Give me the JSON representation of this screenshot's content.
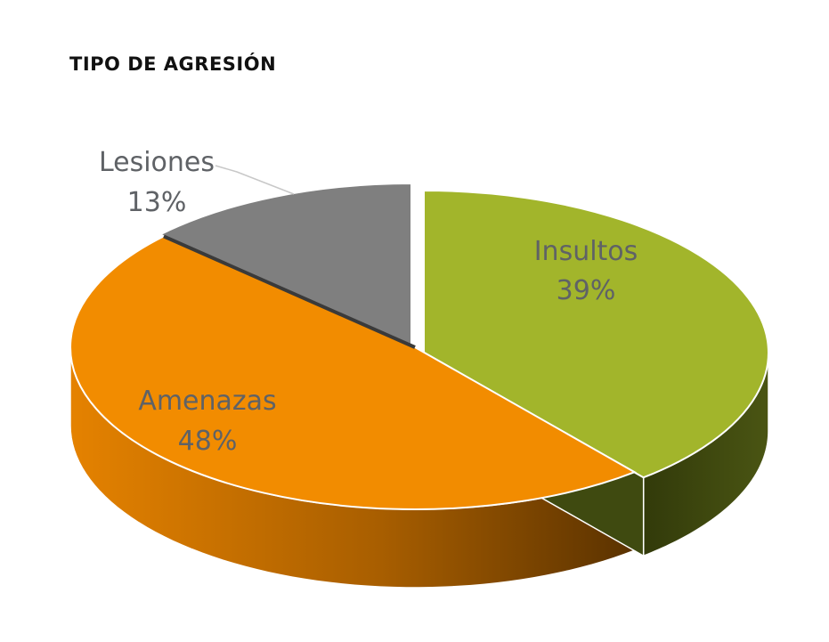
{
  "chart_data": {
    "type": "pie",
    "title": "TIPO DE AGRESIÓN",
    "slices": [
      {
        "label": "Insultos",
        "value": 39,
        "pct_label": "39%",
        "color": "#a2b52b",
        "side_color_light": "#4f5a14",
        "side_color_dark": "#323a0a"
      },
      {
        "label": "Amenazas",
        "value": 48,
        "pct_label": "48%",
        "color": "#f28c00",
        "side_color_light": "#c77000",
        "side_color_dark": "#5a3200"
      },
      {
        "label": "Lesiones",
        "value": 13,
        "pct_label": "13%",
        "color": "#7f7f7f",
        "side_color_light": "#5e5e5e",
        "side_color_dark": "#3c3c3c"
      }
    ],
    "legend": "none",
    "style": "3d-pie",
    "exploded_slice": "Insultos"
  }
}
